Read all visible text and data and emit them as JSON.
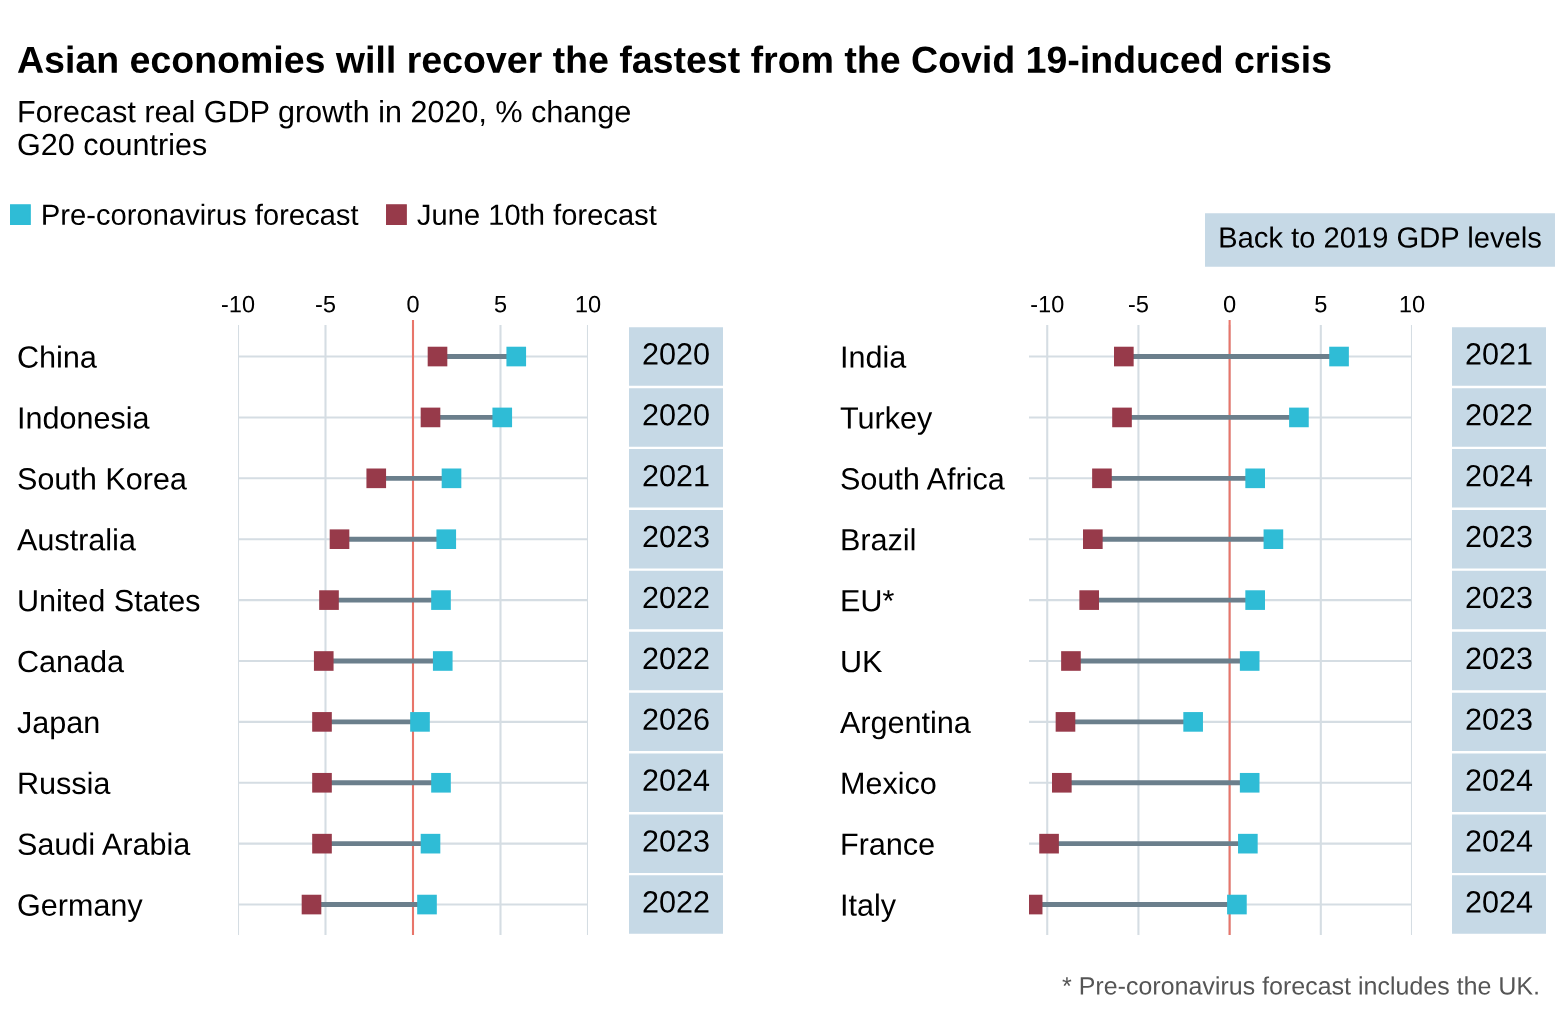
{
  "chart_data": [
    {
      "type": "scatter",
      "title": "Asian economies will recover the fastest from the Covid 19-induced crisis",
      "subtitle": "Forecast real GDP growth in 2020, % change\nG20 countries",
      "orientation": "horizontal",
      "categories": [
        "China",
        "Indonesia",
        "South Korea",
        "Australia",
        "United States",
        "Canada",
        "Japan",
        "Russia",
        "Saudi Arabia",
        "Germany"
      ],
      "series": [
        {
          "name": "Pre-coronavirus forecast",
          "color": "#2fbcd6",
          "values": [
            5.9,
            5.1,
            2.2,
            1.9,
            1.6,
            1.7,
            0.4,
            1.6,
            1.0,
            0.8
          ]
        },
        {
          "name": "June 10th forecast",
          "color": "#973a4a",
          "values": [
            1.4,
            1.0,
            -2.1,
            -4.2,
            -4.8,
            -5.1,
            -5.2,
            -5.2,
            -5.2,
            -5.8
          ]
        }
      ],
      "xlim": [
        -10,
        10
      ],
      "xticks": [
        -10,
        -5,
        0,
        5,
        10
      ],
      "grid": true,
      "legend": "top left",
      "marker": "square",
      "ref_lines": [
        {
          "axis": "x",
          "value": 0,
          "color": "#e8756a"
        }
      ],
      "annotations": [
        "2020",
        "2020",
        "2021",
        "2023",
        "2022",
        "2022",
        "2026",
        "2024",
        "2023",
        "2022"
      ]
    },
    {
      "type": "scatter",
      "orientation": "horizontal",
      "categories": [
        "India",
        "Turkey",
        "South Africa",
        "Brazil",
        "EU*",
        "UK",
        "Argentina",
        "Mexico",
        "France",
        "Italy"
      ],
      "series": [
        {
          "color": "#2fbcd6",
          "values": [
            6.0,
            3.8,
            1.4,
            2.4,
            1.4,
            1.1,
            -2.0,
            1.1,
            1.0,
            0.4
          ]
        },
        {
          "color": "#973a4a",
          "values": [
            -5.8,
            -5.9,
            -7.0,
            -7.5,
            -7.7,
            -8.7,
            -9.0,
            -9.2,
            -9.9,
            -10.8
          ]
        }
      ],
      "xlim": [
        -11,
        10
      ],
      "xticks": [
        -10,
        -5,
        0,
        5,
        10
      ],
      "grid": true,
      "marker": "square",
      "ref_lines": [
        {
          "axis": "x",
          "value": 0,
          "color": "#e8756a"
        }
      ],
      "annotations": [
        "2021",
        "2022",
        "2024",
        "2023",
        "2023",
        "2023",
        "2023",
        "2024",
        "2024",
        "2024",
        "Back to 2019 GDP levels",
        "* Pre-coronavirus forecast includes the UK."
      ]
    }
  ]
}
